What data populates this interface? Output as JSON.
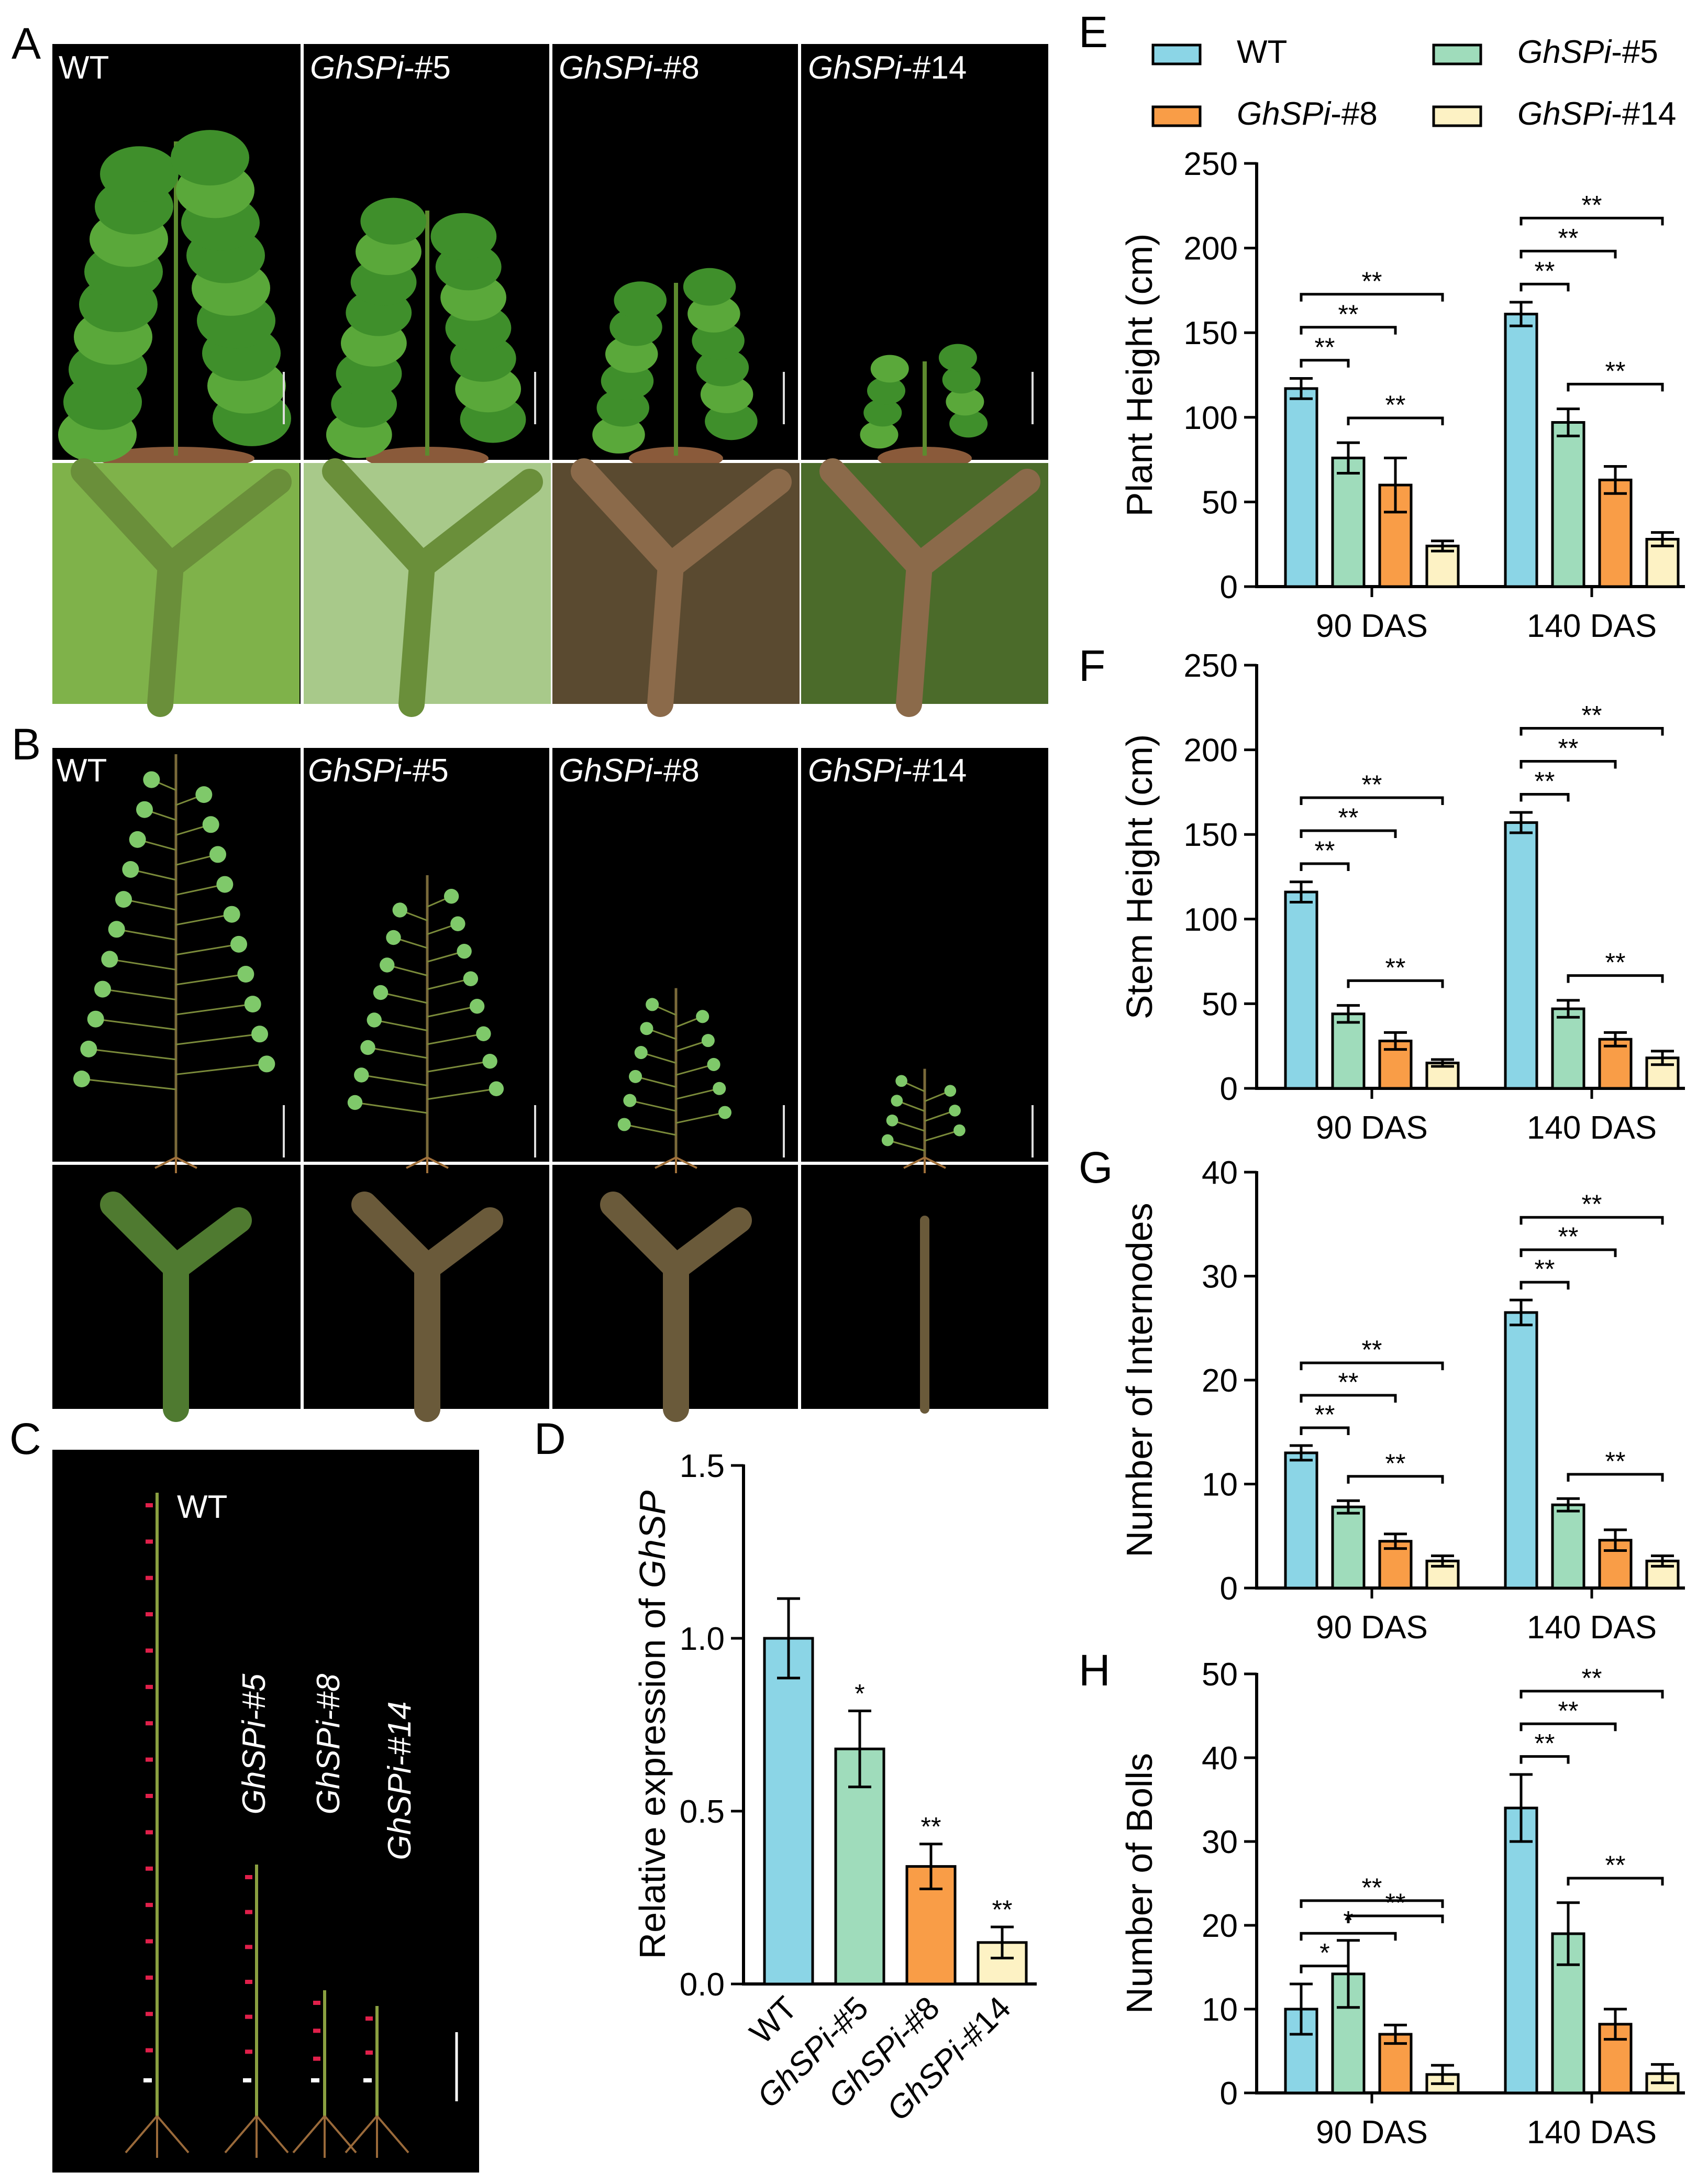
{
  "panels": {
    "A": {
      "letter": "A",
      "labels": [
        {
          "text": "WT",
          "italic_prefix": "",
          "suffix": ""
        },
        {
          "italic_prefix": "GhSPi",
          "suffix": "-#5"
        },
        {
          "italic_prefix": "GhSPi",
          "suffix": "-#8"
        },
        {
          "italic_prefix": "GhSPi",
          "suffix": "-#14"
        }
      ]
    },
    "B": {
      "letter": "B"
    },
    "C": {
      "letter": "C",
      "labels": [
        "WT",
        "GhSPi-#5",
        "GhSPi-#8",
        "GhSPi-#14"
      ]
    },
    "D": {
      "letter": "D"
    },
    "E": {
      "letter": "E"
    },
    "F": {
      "letter": "F"
    },
    "G": {
      "letter": "G"
    },
    "H": {
      "letter": "H"
    }
  },
  "legend": [
    {
      "name_plain": "WT",
      "name_italic": "",
      "name_suffix": "",
      "color": "#8bd5e6"
    },
    {
      "name_plain": "",
      "name_italic": "GhSPi",
      "name_suffix": "-#5",
      "color": "#9fdcbb"
    },
    {
      "name_plain": "",
      "name_italic": "GhSPi",
      "name_suffix": "-#8",
      "color": "#f99d47"
    },
    {
      "name_plain": "",
      "name_italic": "GhSPi",
      "name_suffix": "-#14",
      "color": "#fdf2c4"
    }
  ],
  "chart_data": [
    {
      "id": "D",
      "type": "bar",
      "ylabel_prefix": "Relative expression of ",
      "ylabel_italic": "GhSP",
      "ylim": [
        0,
        1.5
      ],
      "yticks": [
        "0.0",
        "0.5",
        "1.0",
        "1.5"
      ],
      "categories": [
        "WT",
        "GhSPi-#5",
        "GhSPi-#8",
        "GhSPi-#14"
      ],
      "values": [
        1.0,
        0.68,
        0.34,
        0.12
      ],
      "errors": [
        0.115,
        0.11,
        0.065,
        0.045
      ],
      "significance": [
        "",
        "*",
        "**",
        "**"
      ],
      "colors": [
        "#8bd5e6",
        "#9fdcbb",
        "#f99d47",
        "#fdf2c4"
      ]
    },
    {
      "id": "E",
      "type": "bar",
      "ylabel": "Plant Height (cm)",
      "ylim": [
        0,
        250
      ],
      "yticks": [
        "0",
        "50",
        "100",
        "150",
        "200",
        "250"
      ],
      "groups": [
        "90 DAS",
        "140 DAS"
      ],
      "series": [
        {
          "values": [
            117,
            161
          ],
          "errors": [
            6,
            7
          ]
        },
        {
          "values": [
            76,
            97
          ],
          "errors": [
            9,
            8
          ]
        },
        {
          "values": [
            60,
            63
          ],
          "errors": [
            16,
            8
          ]
        },
        {
          "values": [
            24,
            28
          ],
          "errors": [
            3,
            4
          ]
        }
      ],
      "comparisons": [
        {
          "group": 0,
          "from": 0,
          "to": 1,
          "label": "**"
        },
        {
          "group": 0,
          "from": 0,
          "to": 2,
          "label": "**"
        },
        {
          "group": 0,
          "from": 0,
          "to": 3,
          "label": "**"
        },
        {
          "group": 0,
          "from": 1,
          "to": 3,
          "label": "**"
        },
        {
          "group": 1,
          "from": 0,
          "to": 1,
          "label": "**"
        },
        {
          "group": 1,
          "from": 0,
          "to": 2,
          "label": "**"
        },
        {
          "group": 1,
          "from": 0,
          "to": 3,
          "label": "**"
        },
        {
          "group": 1,
          "from": 1,
          "to": 3,
          "label": "**"
        }
      ]
    },
    {
      "id": "F",
      "type": "bar",
      "ylabel": "Stem Height (cm)",
      "ylim": [
        0,
        250
      ],
      "yticks": [
        "0",
        "50",
        "100",
        "150",
        "200",
        "250"
      ],
      "groups": [
        "90 DAS",
        "140 DAS"
      ],
      "series": [
        {
          "values": [
            116,
            157
          ],
          "errors": [
            6,
            6
          ]
        },
        {
          "values": [
            44,
            47
          ],
          "errors": [
            5,
            5
          ]
        },
        {
          "values": [
            28,
            29
          ],
          "errors": [
            5,
            4
          ]
        },
        {
          "values": [
            15,
            18
          ],
          "errors": [
            2,
            4
          ]
        }
      ],
      "comparisons": [
        {
          "group": 0,
          "from": 0,
          "to": 1,
          "label": "**"
        },
        {
          "group": 0,
          "from": 0,
          "to": 2,
          "label": "**"
        },
        {
          "group": 0,
          "from": 0,
          "to": 3,
          "label": "**"
        },
        {
          "group": 0,
          "from": 1,
          "to": 3,
          "label": "**"
        },
        {
          "group": 1,
          "from": 0,
          "to": 1,
          "label": "**"
        },
        {
          "group": 1,
          "from": 0,
          "to": 2,
          "label": "**"
        },
        {
          "group": 1,
          "from": 0,
          "to": 3,
          "label": "**"
        },
        {
          "group": 1,
          "from": 1,
          "to": 3,
          "label": "**"
        }
      ]
    },
    {
      "id": "G",
      "type": "bar",
      "ylabel": "Number of Internodes",
      "ylim": [
        0,
        40
      ],
      "yticks": [
        "0",
        "10",
        "20",
        "30",
        "40"
      ],
      "groups": [
        "90 DAS",
        "140 DAS"
      ],
      "series": [
        {
          "values": [
            13,
            26.5
          ],
          "errors": [
            0.7,
            1.2
          ]
        },
        {
          "values": [
            7.8,
            8
          ],
          "errors": [
            0.6,
            0.6
          ]
        },
        {
          "values": [
            4.5,
            4.6
          ],
          "errors": [
            0.7,
            1.0
          ]
        },
        {
          "values": [
            2.6,
            2.6
          ],
          "errors": [
            0.5,
            0.5
          ]
        }
      ],
      "comparisons": [
        {
          "group": 0,
          "from": 0,
          "to": 1,
          "label": "**"
        },
        {
          "group": 0,
          "from": 0,
          "to": 2,
          "label": "**"
        },
        {
          "group": 0,
          "from": 0,
          "to": 3,
          "label": "**"
        },
        {
          "group": 0,
          "from": 1,
          "to": 3,
          "label": "**"
        },
        {
          "group": 1,
          "from": 0,
          "to": 1,
          "label": "**"
        },
        {
          "group": 1,
          "from": 0,
          "to": 2,
          "label": "**"
        },
        {
          "group": 1,
          "from": 0,
          "to": 3,
          "label": "**"
        },
        {
          "group": 1,
          "from": 1,
          "to": 3,
          "label": "**"
        }
      ]
    },
    {
      "id": "H",
      "type": "bar",
      "ylabel": "Number of Bolls",
      "ylim": [
        0,
        50
      ],
      "yticks": [
        "0",
        "10",
        "20",
        "30",
        "40",
        "50"
      ],
      "groups": [
        "90 DAS",
        "140 DAS"
      ],
      "series": [
        {
          "values": [
            10,
            34
          ],
          "errors": [
            3,
            4
          ]
        },
        {
          "values": [
            14.2,
            19
          ],
          "errors": [
            4,
            3.7
          ]
        },
        {
          "values": [
            7,
            8.2
          ],
          "errors": [
            1.1,
            1.8
          ]
        },
        {
          "values": [
            2.2,
            2.3
          ],
          "errors": [
            1.1,
            1.1
          ]
        }
      ],
      "comparisons": [
        {
          "group": 0,
          "from": 0,
          "to": 1,
          "label": "*"
        },
        {
          "group": 0,
          "from": 0,
          "to": 2,
          "label": "*"
        },
        {
          "group": 0,
          "from": 0,
          "to": 3,
          "label": "**"
        },
        {
          "group": 0,
          "from": 1,
          "to": 3,
          "label": "**"
        },
        {
          "group": 1,
          "from": 0,
          "to": 1,
          "label": "**"
        },
        {
          "group": 1,
          "from": 0,
          "to": 2,
          "label": "**"
        },
        {
          "group": 1,
          "from": 0,
          "to": 3,
          "label": "**"
        },
        {
          "group": 1,
          "from": 1,
          "to": 3,
          "label": "**"
        }
      ]
    }
  ],
  "colors": {
    "WT": "#8bd5e6",
    "GhSPi-#5": "#9fdcbb",
    "GhSPi-#8": "#f99d47",
    "GhSPi-#14": "#fdf2c4",
    "photo_bg": "#000000"
  }
}
